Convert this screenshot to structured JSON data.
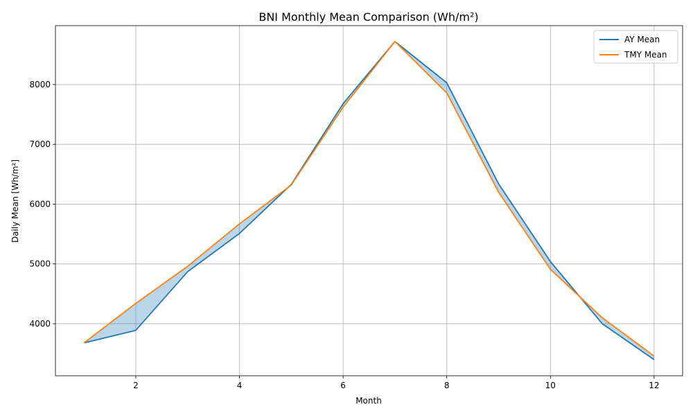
{
  "chart_data": {
    "type": "line",
    "title": "BNI Monthly Mean Comparison (Wh/m²)",
    "xlabel": "Month",
    "ylabel": "Daily Mean [Wh/m²]",
    "x": [
      1,
      2,
      3,
      4,
      5,
      6,
      7,
      8,
      9,
      10,
      11,
      12
    ],
    "xlim": [
      0.45,
      12.55
    ],
    "ylim": [
      3130,
      8985
    ],
    "xticks": [
      2,
      4,
      6,
      8,
      10,
      12
    ],
    "yticks": [
      4000,
      5000,
      6000,
      7000,
      8000
    ],
    "grid": true,
    "legend_position": "top-right",
    "fill_between": {
      "series": [
        "AY Mean",
        "TMY Mean"
      ],
      "color": "#1f77b4",
      "opacity": 0.3
    },
    "series": [
      {
        "name": "AY Mean",
        "color": "#1f77b4",
        "values": [
          3680,
          3890,
          4870,
          5510,
          6330,
          7680,
          8720,
          8030,
          6340,
          5040,
          4000,
          3400
        ]
      },
      {
        "name": "TMY Mean",
        "color": "#ff7f0e",
        "values": [
          3680,
          4340,
          4960,
          5670,
          6320,
          7620,
          8720,
          7860,
          6200,
          4910,
          4100,
          3460
        ]
      }
    ]
  }
}
